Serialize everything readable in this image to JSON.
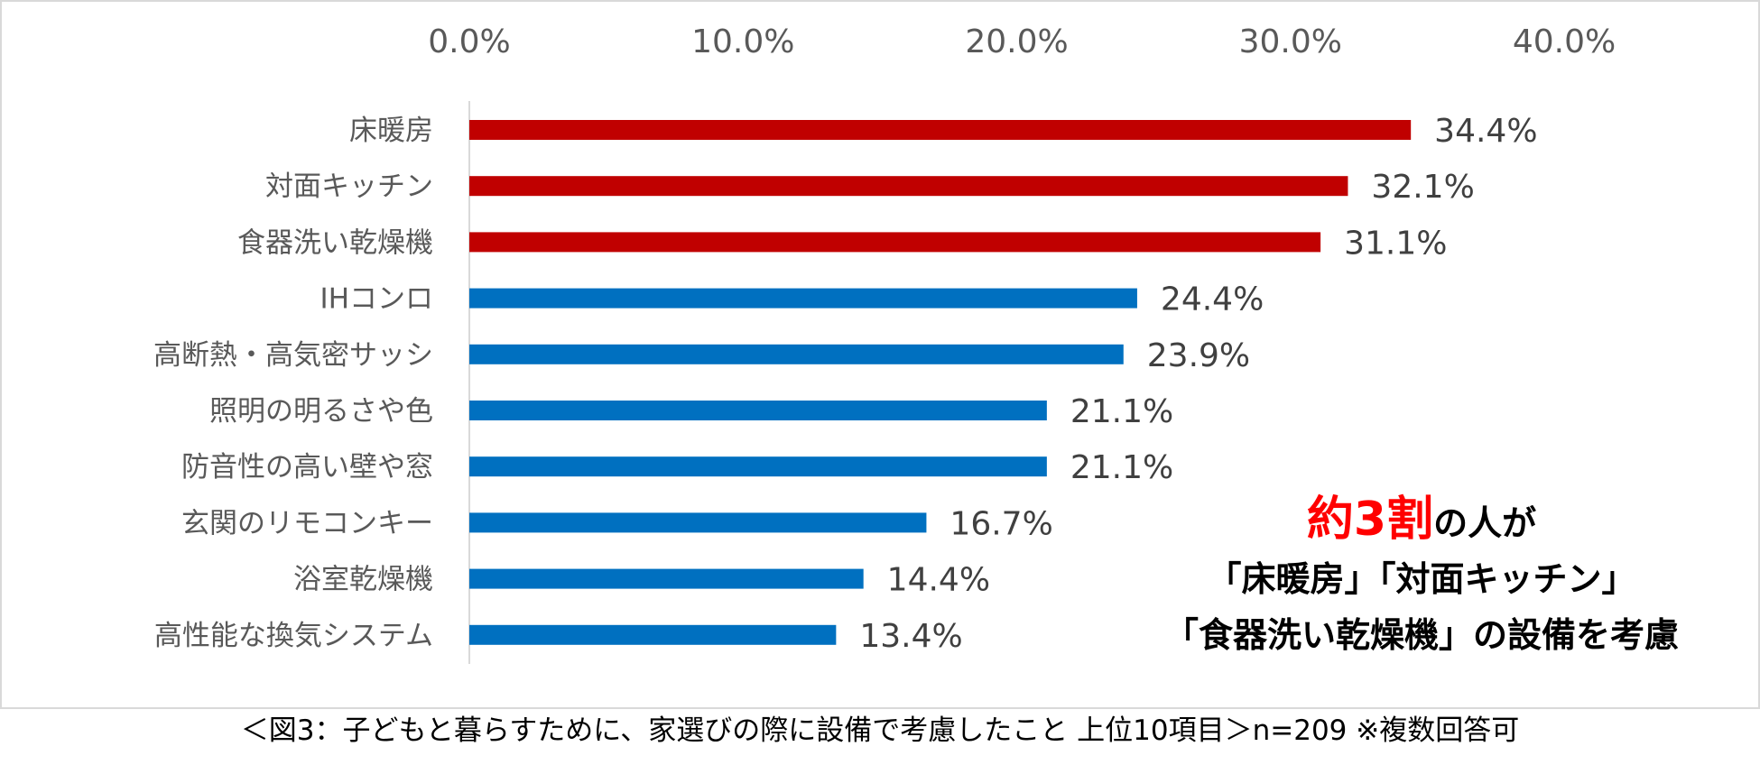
{
  "chart_data": {
    "type": "bar",
    "orientation": "horizontal",
    "categories": [
      "床暖房",
      "対面キッチン",
      "食器洗い乾燥機",
      "IHコンロ",
      "高断熱・高気密サッシ",
      "照明の明るさや色",
      "防音性の高い壁や窓",
      "玄関のリモコンキー",
      "浴室乾燥機",
      "高性能な換気システム"
    ],
    "values": [
      34.4,
      32.1,
      31.1,
      24.4,
      23.9,
      21.1,
      21.1,
      16.7,
      14.4,
      13.4
    ],
    "value_labels": [
      "34.4%",
      "32.1%",
      "31.1%",
      "24.4%",
      "23.9%",
      "21.1%",
      "21.1%",
      "16.7%",
      "14.4%",
      "13.4%"
    ],
    "bar_colors": [
      "#c00000",
      "#c00000",
      "#c00000",
      "#0070c0",
      "#0070c0",
      "#0070c0",
      "#0070c0",
      "#0070c0",
      "#0070c0",
      "#0070c0"
    ],
    "xlim": [
      0,
      40
    ],
    "x_ticks": [
      0,
      10,
      20,
      30,
      40
    ],
    "x_tick_labels": [
      "0.0%",
      "10.0%",
      "20.0%",
      "30.0%",
      "40.0%"
    ],
    "axis_position": "top",
    "grid": false,
    "title": "",
    "xlabel": "",
    "ylabel": ""
  },
  "annotation": {
    "highlight": "約3割",
    "line1_rest": "の人が",
    "line2": "「床暖房」「対面キッチン」",
    "line3": "「食器洗い乾燥機」の設備を考慮"
  },
  "caption": "＜図3：子どもと暮らすために、家選びの際に設備で考慮したこと 上位10項目＞n=209 ※複数回答可"
}
